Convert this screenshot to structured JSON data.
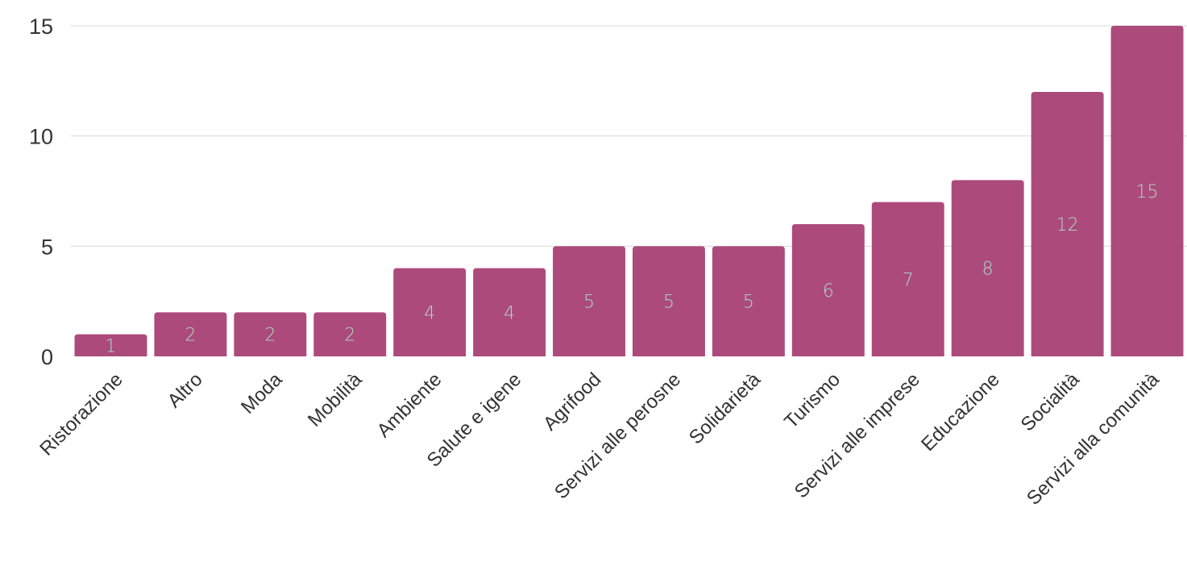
{
  "chart_data": {
    "type": "bar",
    "title": "",
    "xlabel": "",
    "ylabel": "",
    "categories": [
      "Ristorazione",
      "Altro",
      "Moda",
      "Mobilità",
      "Ambiente",
      "Salute e igene",
      "Agrifood",
      "Servizi alle perosne",
      "Solidarietà",
      "Turismo",
      "Servizi alle imprese",
      "Educazione",
      "Socialità",
      "Servizi alla comunità"
    ],
    "values": [
      1,
      2,
      2,
      2,
      4,
      4,
      5,
      5,
      5,
      6,
      7,
      8,
      12,
      15
    ],
    "data_labels": [
      "1",
      "2",
      "2",
      "2",
      "4",
      "4",
      "5",
      "5",
      "5",
      "6",
      "7",
      "8",
      "12",
      "15"
    ],
    "ylim": [
      0,
      15
    ],
    "yticks": [
      0,
      5,
      10,
      15
    ],
    "ytick_labels": [
      "0",
      "5",
      "10",
      "15"
    ],
    "grid": true,
    "legend": "none",
    "colors": {
      "bar": "#ad4a7c",
      "data_label": "#a7dcc8",
      "grid": "#d9d9d9",
      "text": "#333333"
    }
  }
}
